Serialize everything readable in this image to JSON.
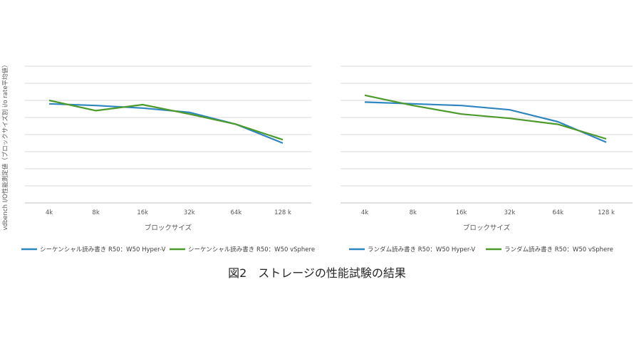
{
  "figure": {
    "y_axis_label": "vdbench I/O性能測定値（ブロックサイズ別 i/o rate平均値）",
    "caption": "図2　ストレージの性能試験の結果"
  },
  "chart_data": [
    {
      "type": "line",
      "categories": [
        "4k",
        "8k",
        "16k",
        "32k",
        "64k",
        "128 k"
      ],
      "xlabel": "ブロックサイズ",
      "ylabel": "vdbench I/O性能測定値（ブロックサイズ別 i/o rate平均値）",
      "ylim": [
        0,
        8
      ],
      "grid": true,
      "legend": "bottom",
      "series": [
        {
          "name": "シーケンシャル読み書き R50：W50 Hyper-V",
          "color": "#2E86C1",
          "values": [
            5.8,
            5.7,
            5.55,
            5.3,
            4.6,
            3.5
          ]
        },
        {
          "name": "シーケンシャル読み書き R50：W50 vSphere",
          "color": "#4C9A2A",
          "values": [
            6.0,
            5.4,
            5.75,
            5.2,
            4.6,
            3.7
          ]
        }
      ]
    },
    {
      "type": "line",
      "categories": [
        "4k",
        "8k",
        "16k",
        "32k",
        "64k",
        "128 k"
      ],
      "xlabel": "ブロックサイズ",
      "ylim": [
        0,
        8
      ],
      "grid": true,
      "legend": "bottom",
      "series": [
        {
          "name": "ランダム読み書き R50：W50 Hyper-V",
          "color": "#2E86C1",
          "values": [
            5.9,
            5.8,
            5.7,
            5.45,
            4.75,
            3.55
          ]
        },
        {
          "name": "ランダム読み書き R50：W50 vSphere",
          "color": "#4C9A2A",
          "values": [
            6.3,
            5.7,
            5.2,
            4.95,
            4.6,
            3.75
          ]
        }
      ]
    }
  ]
}
